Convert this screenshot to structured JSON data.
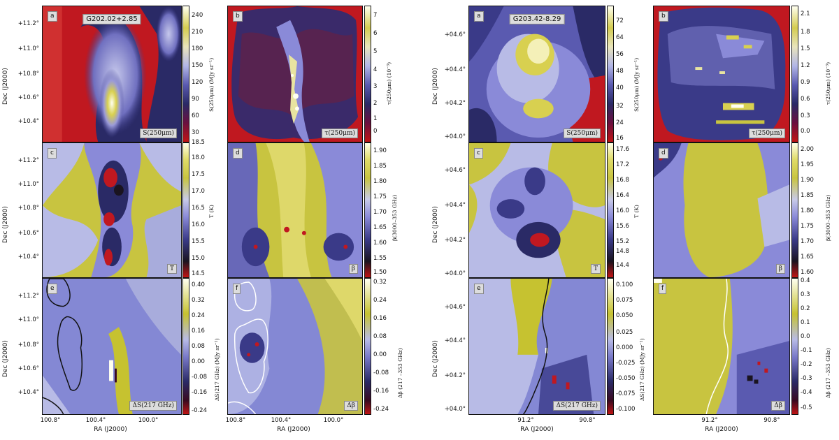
{
  "left_set": {
    "title": "G202.02+2.85",
    "ytick_labels": [
      "+11.2°",
      "+11.0°",
      "+10.8°",
      "+10.6°",
      "+10.4°"
    ],
    "ylabel": "Dec (J2000)",
    "xlabel": "RA (J2000)",
    "xtick_labels": [
      "100.8°",
      "100.4°",
      "100.0°"
    ],
    "panels": {
      "a": {
        "letter": "a",
        "badge": "S(250μm)",
        "cbar_label": "S(250μm) (MJy sr⁻¹)",
        "ticks": [
          "240",
          "210",
          "180",
          "150",
          "120",
          "90",
          "60",
          "30"
        ]
      },
      "b": {
        "letter": "b",
        "badge": "τ(250μm)",
        "cbar_label": "τ(250μm) (10⁻³)",
        "ticks": [
          "7",
          "6",
          "5",
          "4",
          "3",
          "2",
          "1",
          "0"
        ]
      },
      "c": {
        "letter": "c",
        "badge": "T",
        "cbar_label": "T (K)",
        "ticks": [
          "18.5",
          "18.0",
          "17.5",
          "17.0",
          "16.5",
          "16.0",
          "15.5",
          "15.0",
          "14.5"
        ]
      },
      "d": {
        "letter": "d",
        "badge": "β",
        "cbar_label": "β(3000–353 GHz)",
        "ticks": [
          "1.90",
          "1.85",
          "1.80",
          "1.75",
          "1.70",
          "1.65",
          "1.60",
          "1.55",
          "1.50"
        ]
      },
      "e": {
        "letter": "e",
        "badge": "ΔS(217 GHz)",
        "cbar_label": "ΔS(217 GHz) (MJy sr⁻¹)",
        "ticks": [
          "0.40",
          "0.32",
          "0.24",
          "0.16",
          "0.08",
          "0.00",
          "-0.08",
          "-0.16",
          "-0.24"
        ]
      },
      "f": {
        "letter": "f",
        "badge": "Δβ",
        "cbar_label": "Δβ (217 –353 GHz)",
        "ticks": [
          "0.32",
          "0.24",
          "0.16",
          "0.08",
          "0.00",
          "-0.08",
          "-0.16",
          "-0.24"
        ]
      }
    }
  },
  "right_set": {
    "title": "G203.42-8.29",
    "ytick_labels": [
      "+04.6°",
      "+04.4°",
      "+04.2°",
      "+04.0°"
    ],
    "ylabel": "Dec (J2000)",
    "xlabel": "RA (J2000)",
    "xtick_labels": [
      "91.2°",
      "90.8°"
    ],
    "panels": {
      "a": {
        "letter": "a",
        "badge": "S(250μm)",
        "cbar_label": "S(250μm) (MJy sr⁻¹)",
        "ticks": [
          "72",
          "64",
          "56",
          "48",
          "40",
          "32",
          "24",
          "16"
        ]
      },
      "b": {
        "letter": "b",
        "badge": "τ(250μm)",
        "cbar_label": "τ(250μm) (10⁻³)",
        "ticks": [
          "2.1",
          "1.8",
          "1.5",
          "1.2",
          "0.9",
          "0.6",
          "0.3",
          "0.0"
        ]
      },
      "c": {
        "letter": "c",
        "badge": "T",
        "cbar_label": "T (K)",
        "ticks": [
          "17.6",
          "17.2",
          "16.8",
          "16.4",
          "16.0",
          "15.6",
          "15.2",
          "14.8",
          "14.4"
        ]
      },
      "d": {
        "letter": "d",
        "badge": "β",
        "cbar_label": "β(3000–353 GHz)",
        "ticks": [
          "2.00",
          "1.95",
          "1.90",
          "1.85",
          "1.80",
          "1.75",
          "1.70",
          "1.65",
          "1.60"
        ]
      },
      "e": {
        "letter": "e",
        "badge": "ΔS(217 GHz)",
        "cbar_label": "ΔS(217 GHz) (MJy sr⁻¹)",
        "ticks": [
          "0.100",
          "0.075",
          "0.050",
          "0.025",
          "0.000",
          "-0.025",
          "-0.050",
          "-0.075",
          "-0.100"
        ]
      },
      "f": {
        "letter": "f",
        "badge": "Δβ",
        "cbar_label": "Δβ (217 –353 GHz)",
        "ticks": [
          "0.4",
          "0.3",
          "0.2",
          "0.1",
          "0.0",
          "-0.1",
          "-0.2",
          "-0.3",
          "-0.4",
          "-0.5"
        ]
      }
    }
  },
  "colors": {
    "red": "#c01414",
    "navy": "#2a2a66",
    "lavender": "#b2b6e6",
    "olive": "#c8c440",
    "cream": "#fffff0"
  }
}
